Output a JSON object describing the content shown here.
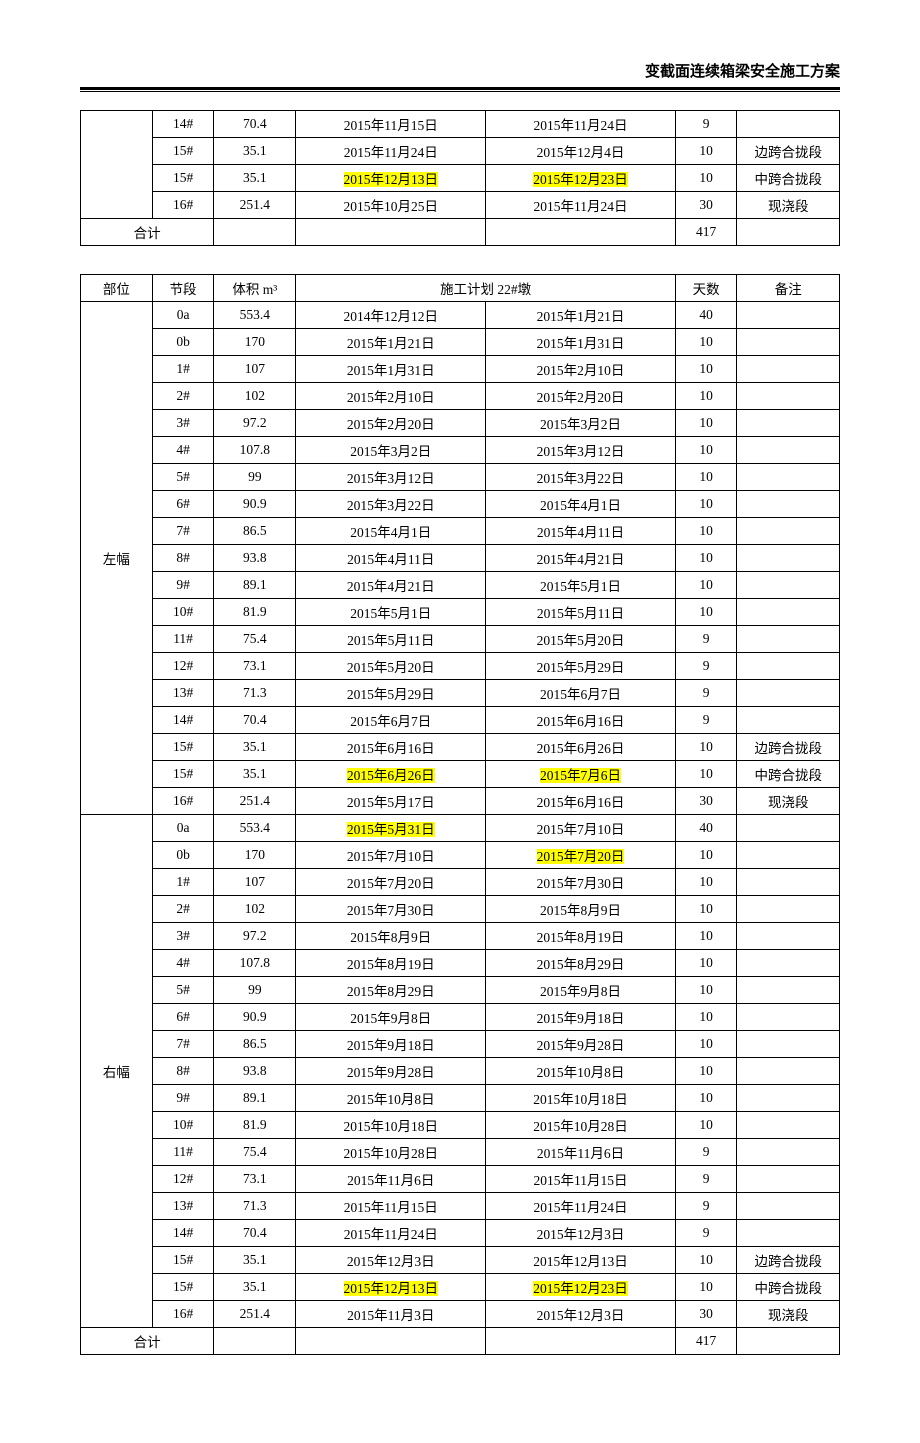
{
  "header_title": "变截面连续箱梁安全施工方案",
  "table1": {
    "rows": [
      {
        "seg": "14#",
        "vol": "70.4",
        "d1": "2015年11月15日",
        "d2": "2015年11月24日",
        "days": "9",
        "note": ""
      },
      {
        "seg": "15#",
        "vol": "35.1",
        "d1": "2015年11月24日",
        "d2": "2015年12月4日",
        "days": "10",
        "note": "边跨合拢段"
      },
      {
        "seg": "15#",
        "vol": "35.1",
        "d1": "2015年12月13日",
        "d2": "2015年12月23日",
        "days": "10",
        "note": "中跨合拢段",
        "hl_d1": true,
        "hl_d2": true
      },
      {
        "seg": "16#",
        "vol": "251.4",
        "d1": "2015年10月25日",
        "d2": "2015年11月24日",
        "days": "30",
        "note": "现浇段"
      }
    ],
    "total_label": "合计",
    "total_days": "417"
  },
  "table2": {
    "head": {
      "buwei": "部位",
      "seg": "节段",
      "vol": "体积 m³",
      "plan": "施工计划 22#墩",
      "days": "天数",
      "note": "备注"
    },
    "left_label": "左幅",
    "right_label": "右幅",
    "left_rows": [
      {
        "seg": "0a",
        "vol": "553.4",
        "d1": "2014年12月12日",
        "d2": "2015年1月21日",
        "days": "40",
        "note": ""
      },
      {
        "seg": "0b",
        "vol": "170",
        "d1": "2015年1月21日",
        "d2": "2015年1月31日",
        "days": "10",
        "note": ""
      },
      {
        "seg": "1#",
        "vol": "107",
        "d1": "2015年1月31日",
        "d2": "2015年2月10日",
        "days": "10",
        "note": ""
      },
      {
        "seg": "2#",
        "vol": "102",
        "d1": "2015年2月10日",
        "d2": "2015年2月20日",
        "days": "10",
        "note": ""
      },
      {
        "seg": "3#",
        "vol": "97.2",
        "d1": "2015年2月20日",
        "d2": "2015年3月2日",
        "days": "10",
        "note": ""
      },
      {
        "seg": "4#",
        "vol": "107.8",
        "d1": "2015年3月2日",
        "d2": "2015年3月12日",
        "days": "10",
        "note": ""
      },
      {
        "seg": "5#",
        "vol": "99",
        "d1": "2015年3月12日",
        "d2": "2015年3月22日",
        "days": "10",
        "note": ""
      },
      {
        "seg": "6#",
        "vol": "90.9",
        "d1": "2015年3月22日",
        "d2": "2015年4月1日",
        "days": "10",
        "note": ""
      },
      {
        "seg": "7#",
        "vol": "86.5",
        "d1": "2015年4月1日",
        "d2": "2015年4月11日",
        "days": "10",
        "note": ""
      },
      {
        "seg": "8#",
        "vol": "93.8",
        "d1": "2015年4月11日",
        "d2": "2015年4月21日",
        "days": "10",
        "note": ""
      },
      {
        "seg": "9#",
        "vol": "89.1",
        "d1": "2015年4月21日",
        "d2": "2015年5月1日",
        "days": "10",
        "note": ""
      },
      {
        "seg": "10#",
        "vol": "81.9",
        "d1": "2015年5月1日",
        "d2": "2015年5月11日",
        "days": "10",
        "note": ""
      },
      {
        "seg": "11#",
        "vol": "75.4",
        "d1": "2015年5月11日",
        "d2": "2015年5月20日",
        "days": "9",
        "note": ""
      },
      {
        "seg": "12#",
        "vol": "73.1",
        "d1": "2015年5月20日",
        "d2": "2015年5月29日",
        "days": "9",
        "note": ""
      },
      {
        "seg": "13#",
        "vol": "71.3",
        "d1": "2015年5月29日",
        "d2": "2015年6月7日",
        "days": "9",
        "note": ""
      },
      {
        "seg": "14#",
        "vol": "70.4",
        "d1": "2015年6月7日",
        "d2": "2015年6月16日",
        "days": "9",
        "note": ""
      },
      {
        "seg": "15#",
        "vol": "35.1",
        "d1": "2015年6月16日",
        "d2": "2015年6月26日",
        "days": "10",
        "note": "边跨合拢段"
      },
      {
        "seg": "15#",
        "vol": "35.1",
        "d1": "2015年6月26日",
        "d2": "2015年7月6日",
        "days": "10",
        "note": "中跨合拢段",
        "hl_d1": true,
        "hl_d2": true
      },
      {
        "seg": "16#",
        "vol": "251.4",
        "d1": "2015年5月17日",
        "d2": "2015年6月16日",
        "days": "30",
        "note": "现浇段"
      }
    ],
    "right_rows": [
      {
        "seg": "0a",
        "vol": "553.4",
        "d1": "2015年5月31日",
        "d2": "2015年7月10日",
        "days": "40",
        "note": "",
        "hl_d1": true
      },
      {
        "seg": "0b",
        "vol": "170",
        "d1": "2015年7月10日",
        "d2": "2015年7月20日",
        "days": "10",
        "note": "",
        "hl_d2": true
      },
      {
        "seg": "1#",
        "vol": "107",
        "d1": "2015年7月20日",
        "d2": "2015年7月30日",
        "days": "10",
        "note": ""
      },
      {
        "seg": "2#",
        "vol": "102",
        "d1": "2015年7月30日",
        "d2": "2015年8月9日",
        "days": "10",
        "note": ""
      },
      {
        "seg": "3#",
        "vol": "97.2",
        "d1": "2015年8月9日",
        "d2": "2015年8月19日",
        "days": "10",
        "note": ""
      },
      {
        "seg": "4#",
        "vol": "107.8",
        "d1": "2015年8月19日",
        "d2": "2015年8月29日",
        "days": "10",
        "note": ""
      },
      {
        "seg": "5#",
        "vol": "99",
        "d1": "2015年8月29日",
        "d2": "2015年9月8日",
        "days": "10",
        "note": ""
      },
      {
        "seg": "6#",
        "vol": "90.9",
        "d1": "2015年9月8日",
        "d2": "2015年9月18日",
        "days": "10",
        "note": ""
      },
      {
        "seg": "7#",
        "vol": "86.5",
        "d1": "2015年9月18日",
        "d2": "2015年9月28日",
        "days": "10",
        "note": ""
      },
      {
        "seg": "8#",
        "vol": "93.8",
        "d1": "2015年9月28日",
        "d2": "2015年10月8日",
        "days": "10",
        "note": ""
      },
      {
        "seg": "9#",
        "vol": "89.1",
        "d1": "2015年10月8日",
        "d2": "2015年10月18日",
        "days": "10",
        "note": ""
      },
      {
        "seg": "10#",
        "vol": "81.9",
        "d1": "2015年10月18日",
        "d2": "2015年10月28日",
        "days": "10",
        "note": ""
      },
      {
        "seg": "11#",
        "vol": "75.4",
        "d1": "2015年10月28日",
        "d2": "2015年11月6日",
        "days": "9",
        "note": ""
      },
      {
        "seg": "12#",
        "vol": "73.1",
        "d1": "2015年11月6日",
        "d2": "2015年11月15日",
        "days": "9",
        "note": ""
      },
      {
        "seg": "13#",
        "vol": "71.3",
        "d1": "2015年11月15日",
        "d2": "2015年11月24日",
        "days": "9",
        "note": ""
      },
      {
        "seg": "14#",
        "vol": "70.4",
        "d1": "2015年11月24日",
        "d2": "2015年12月3日",
        "days": "9",
        "note": ""
      },
      {
        "seg": "15#",
        "vol": "35.1",
        "d1": "2015年12月3日",
        "d2": "2015年12月13日",
        "days": "10",
        "note": "边跨合拢段"
      },
      {
        "seg": "15#",
        "vol": "35.1",
        "d1": "2015年12月13日",
        "d2": "2015年12月23日",
        "days": "10",
        "note": "中跨合拢段",
        "hl_d1": true,
        "hl_d2": true
      },
      {
        "seg": "16#",
        "vol": "251.4",
        "d1": "2015年11月3日",
        "d2": "2015年12月3日",
        "days": "30",
        "note": "现浇段"
      }
    ],
    "total_label": "合计",
    "total_days": "417"
  }
}
